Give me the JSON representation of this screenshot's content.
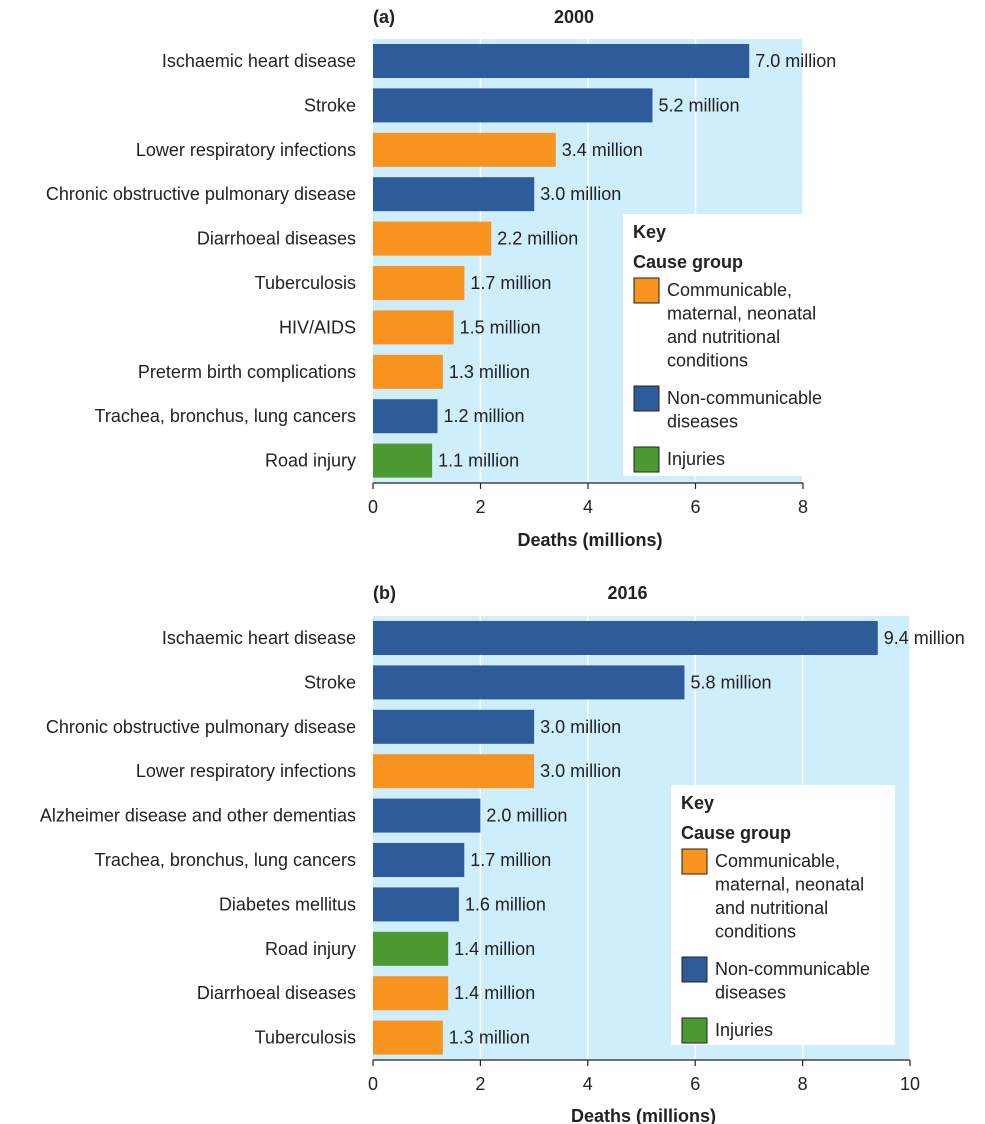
{
  "colors": {
    "communicable": "#f7931e",
    "noncommunicable": "#2e5c9a",
    "injuries": "#4e9a32",
    "plot_bg": "#cdeefa"
  },
  "chart_data": [
    {
      "type": "bar",
      "orientation": "horizontal",
      "panel_label": "(a)",
      "title": "2000",
      "xlabel": "Deaths (millions)",
      "xlim": [
        0,
        8
      ],
      "xticks": [
        0,
        2,
        4,
        6,
        8
      ],
      "grid": true,
      "legend_placement": "lower-right",
      "categories": [
        "Ischaemic heart disease",
        "Stroke",
        "Lower respiratory infections",
        "Chronic obstructive pulmonary disease",
        "Diarrhoeal diseases",
        "Tuberculosis",
        "HIV/AIDS",
        "Preterm birth complications",
        "Trachea, bronchus, lung cancers",
        "Road injury"
      ],
      "values": [
        7.0,
        5.2,
        3.4,
        3.0,
        2.2,
        1.7,
        1.5,
        1.3,
        1.2,
        1.1
      ],
      "value_labels": [
        "7.0 million",
        "5.2 million",
        "3.4 million",
        "3.0 million",
        "2.2 million",
        "1.7 million",
        "1.5 million",
        "1.3 million",
        "1.2 million",
        "1.1 million"
      ],
      "groups": [
        "noncommunicable",
        "noncommunicable",
        "communicable",
        "noncommunicable",
        "communicable",
        "communicable",
        "communicable",
        "communicable",
        "noncommunicable",
        "injuries"
      ]
    },
    {
      "type": "bar",
      "orientation": "horizontal",
      "panel_label": "(b)",
      "title": "2016",
      "xlabel": "Deaths (millions)",
      "xlim": [
        0,
        10
      ],
      "xticks": [
        0,
        2,
        4,
        6,
        8,
        10
      ],
      "grid": true,
      "legend_placement": "lower-right",
      "categories": [
        "Ischaemic heart disease",
        "Stroke",
        "Chronic obstructive pulmonary disease",
        "Lower respiratory infections",
        "Alzheimer disease and other dementias",
        "Trachea, bronchus, lung cancers",
        "Diabetes mellitus",
        "Road injury",
        "Diarrhoeal diseases",
        "Tuberculosis"
      ],
      "values": [
        9.4,
        5.8,
        3.0,
        3.0,
        2.0,
        1.7,
        1.6,
        1.4,
        1.4,
        1.3
      ],
      "value_labels": [
        "9.4 million",
        "5.8 million",
        "3.0 million",
        "3.0 million",
        "2.0 million",
        "1.7 million",
        "1.6 million",
        "1.4 million",
        "1.4 million",
        "1.3 million"
      ],
      "groups": [
        "noncommunicable",
        "noncommunicable",
        "noncommunicable",
        "communicable",
        "noncommunicable",
        "noncommunicable",
        "noncommunicable",
        "injuries",
        "communicable",
        "communicable"
      ]
    }
  ],
  "legend": {
    "heading": "Key",
    "subheading": "Cause group",
    "items": [
      {
        "group": "communicable",
        "lines": [
          "Communicable,",
          "maternal, neonatal",
          "and nutritional",
          "conditions"
        ]
      },
      {
        "group": "noncommunicable",
        "lines": [
          "Non-communicable",
          "diseases"
        ]
      },
      {
        "group": "injuries",
        "lines": [
          "Injuries"
        ]
      }
    ]
  }
}
